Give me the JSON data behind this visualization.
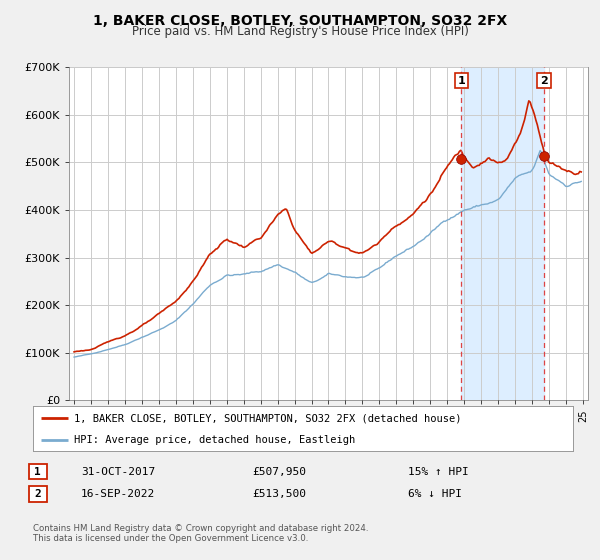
{
  "title": "1, BAKER CLOSE, BOTLEY, SOUTHAMPTON, SO32 2FX",
  "subtitle": "Price paid vs. HM Land Registry's House Price Index (HPI)",
  "legend_label_red": "1, BAKER CLOSE, BOTLEY, SOUTHAMPTON, SO32 2FX (detached house)",
  "legend_label_blue": "HPI: Average price, detached house, Eastleigh",
  "footnote1": "Contains HM Land Registry data © Crown copyright and database right 2024.",
  "footnote2": "This data is licensed under the Open Government Licence v3.0.",
  "marker1_date": "31-OCT-2017",
  "marker1_price": "£507,950",
  "marker1_hpi": "15% ↑ HPI",
  "marker2_date": "16-SEP-2022",
  "marker2_price": "£513,500",
  "marker2_hpi": "6% ↓ HPI",
  "label1": "1",
  "label2": "2",
  "red_color": "#cc2200",
  "blue_color": "#7aabcf",
  "shade_color": "#ddeeff",
  "dashed_color": "#dd4444",
  "background_color": "#f0f0f0",
  "plot_bg_color": "#ffffff",
  "grid_color": "#cccccc",
  "ylim": [
    0,
    700000
  ],
  "yticks": [
    0,
    100000,
    200000,
    300000,
    400000,
    500000,
    600000,
    700000
  ],
  "ytick_labels": [
    "£0",
    "£100K",
    "£200K",
    "£300K",
    "£400K",
    "£500K",
    "£600K",
    "£700K"
  ],
  "xlim_start": 1994.7,
  "xlim_end": 2025.3,
  "marker1_x": 2017.83,
  "marker2_x": 2022.71,
  "marker1_y": 507950,
  "marker2_y": 513500
}
